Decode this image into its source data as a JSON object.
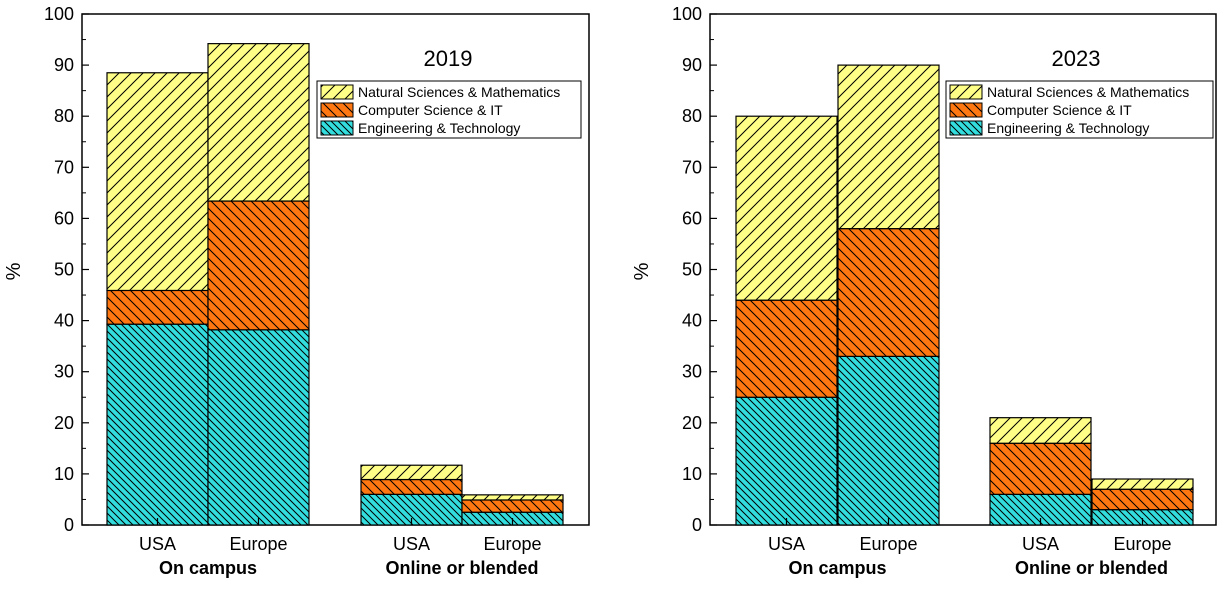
{
  "chart_data": [
    {
      "type": "bar",
      "stacked": true,
      "title": "2019",
      "ylabel": "%",
      "ylim": [
        0,
        100
      ],
      "y_ticks": [
        0,
        10,
        20,
        30,
        40,
        50,
        60,
        70,
        80,
        90,
        100
      ],
      "categories": [
        "USA",
        "Europe",
        "USA",
        "Europe"
      ],
      "groups": [
        {
          "label": "On campus",
          "categories": [
            "USA",
            "Europe"
          ]
        },
        {
          "label": "Online or blended",
          "categories": [
            "USA",
            "Europe"
          ]
        }
      ],
      "legend_position": "top-right",
      "series": [
        {
          "name": "Engineering & Technology",
          "color": "#33dddd",
          "values": [
            39.3,
            38.2,
            6.0,
            2.5
          ]
        },
        {
          "name": "Computer Science & IT",
          "color": "#ff7711",
          "values": [
            6.6,
            25.2,
            2.9,
            2.4
          ]
        },
        {
          "name": "Natural Sciences & Mathematics",
          "color": "#ffff88",
          "values": [
            42.6,
            30.8,
            2.8,
            1.0
          ]
        }
      ]
    },
    {
      "type": "bar",
      "stacked": true,
      "title": "2023",
      "ylabel": "%",
      "ylim": [
        0,
        100
      ],
      "y_ticks": [
        0,
        10,
        20,
        30,
        40,
        50,
        60,
        70,
        80,
        90,
        100
      ],
      "categories": [
        "USA",
        "Europe",
        "USA",
        "Europe"
      ],
      "groups": [
        {
          "label": "On campus",
          "categories": [
            "USA",
            "Europe"
          ]
        },
        {
          "label": "Online or blended",
          "categories": [
            "USA",
            "Europe"
          ]
        }
      ],
      "legend_position": "top-right",
      "series": [
        {
          "name": "Engineering & Technology",
          "color": "#33dddd",
          "values": [
            25.0,
            33.0,
            6.0,
            3.0
          ]
        },
        {
          "name": "Computer Science & IT",
          "color": "#ff7711",
          "values": [
            19.0,
            25.0,
            10.0,
            4.0
          ]
        },
        {
          "name": "Natural Sciences & Mathematics",
          "color": "#ffff88",
          "values": [
            36.0,
            32.0,
            5.0,
            2.0
          ]
        }
      ]
    }
  ]
}
